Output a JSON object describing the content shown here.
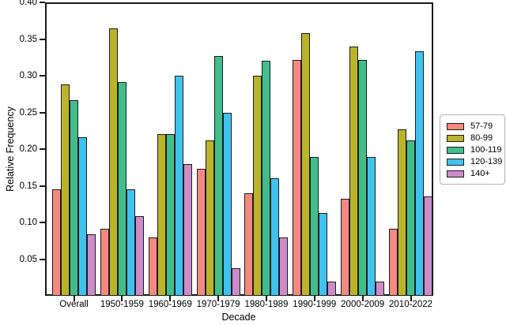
{
  "chart_data": {
    "type": "bar",
    "title": "",
    "xlabel": "Decade",
    "ylabel": "Relative Frequency",
    "ylim": [
      0,
      0.4
    ],
    "yticks": [
      0.05,
      0.1,
      0.15,
      0.2,
      0.25,
      0.3,
      0.35,
      0.4
    ],
    "grid": false,
    "legend_position": "right-outside",
    "categories": [
      "Overall",
      "1950-1959",
      "1960-1969",
      "1970-1979",
      "1980-1989",
      "1990-1999",
      "2000-2009",
      "2010-2022"
    ],
    "series": [
      {
        "name": "57-79",
        "color": "#f5897f",
        "values": [
          0.145,
          0.091,
          0.08,
          0.173,
          0.14,
          0.321,
          0.132,
          0.091
        ]
      },
      {
        "name": "80-99",
        "color": "#bab42a",
        "values": [
          0.288,
          0.364,
          0.22,
          0.212,
          0.3,
          0.358,
          0.34,
          0.227
        ]
      },
      {
        "name": "100-119",
        "color": "#41be8c",
        "values": [
          0.267,
          0.291,
          0.22,
          0.327,
          0.32,
          0.189,
          0.321,
          0.212
        ]
      },
      {
        "name": "120-139",
        "color": "#41c2ee",
        "values": [
          0.216,
          0.145,
          0.3,
          0.25,
          0.16,
          0.113,
          0.189,
          0.333
        ]
      },
      {
        "name": "140+",
        "color": "#cd8bc9",
        "values": [
          0.084,
          0.109,
          0.18,
          0.038,
          0.08,
          0.019,
          0.019,
          0.136
        ]
      }
    ]
  }
}
